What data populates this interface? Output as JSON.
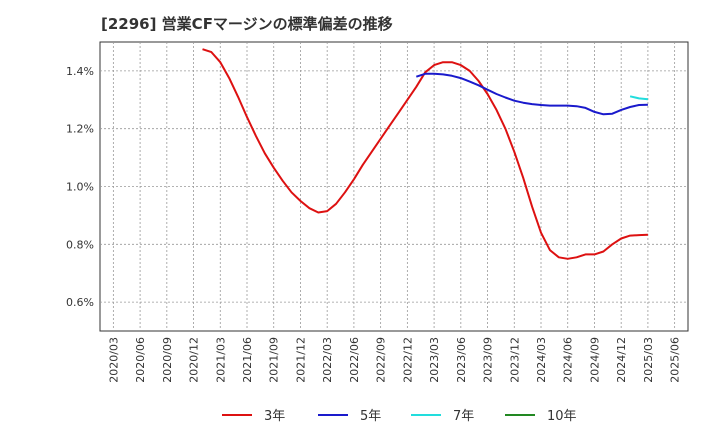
{
  "header": {
    "title": "[2296]  営業CFマージンの標準偏差の推移"
  },
  "chart_data": {
    "type": "line",
    "title": "[2296]  営業CFマージンの標準偏差の推移",
    "xlabel": "",
    "ylabel": "",
    "ylim": [
      0.5,
      1.5
    ],
    "yticks": [
      0.6,
      0.8,
      1.0,
      1.2,
      1.4
    ],
    "ytick_labels": [
      "0.6%",
      "0.8%",
      "1.0%",
      "1.2%",
      "1.4%"
    ],
    "x_ticks": [
      "2020/03",
      "2020/06",
      "2020/09",
      "2020/12",
      "2021/03",
      "2021/06",
      "2021/09",
      "2021/12",
      "2022/03",
      "2022/06",
      "2022/09",
      "2022/12",
      "2023/03",
      "2023/06",
      "2023/09",
      "2023/12",
      "2024/03",
      "2024/06",
      "2024/09",
      "2024/12",
      "2025/03",
      "2025/06"
    ],
    "grid": true,
    "legend_position": "bottom",
    "series": [
      {
        "name": "3年",
        "color": "#dd1111",
        "x": [
          "2021/01",
          "2021/02",
          "2021/03",
          "2021/04",
          "2021/05",
          "2021/06",
          "2021/07",
          "2021/08",
          "2021/09",
          "2021/10",
          "2021/11",
          "2021/12",
          "2022/01",
          "2022/02",
          "2022/03",
          "2022/04",
          "2022/05",
          "2022/06",
          "2022/07",
          "2022/08",
          "2022/09",
          "2022/10",
          "2022/11",
          "2022/12",
          "2023/01",
          "2023/02",
          "2023/03",
          "2023/04",
          "2023/05",
          "2023/06",
          "2023/07",
          "2023/08",
          "2023/09",
          "2023/10",
          "2023/11",
          "2023/12",
          "2024/01",
          "2024/02",
          "2024/03",
          "2024/04",
          "2024/05",
          "2024/06",
          "2024/07",
          "2024/08",
          "2024/09",
          "2024/10",
          "2024/11",
          "2024/12",
          "2025/01",
          "2025/02",
          "2025/03"
        ],
        "values": [
          1.475,
          1.465,
          1.43,
          1.375,
          1.31,
          1.24,
          1.175,
          1.115,
          1.065,
          1.02,
          0.98,
          0.95,
          0.925,
          0.91,
          0.915,
          0.94,
          0.98,
          1.025,
          1.075,
          1.12,
          1.165,
          1.21,
          1.255,
          1.3,
          1.345,
          1.395,
          1.42,
          1.43,
          1.43,
          1.42,
          1.4,
          1.365,
          1.32,
          1.265,
          1.2,
          1.12,
          1.03,
          0.93,
          0.84,
          0.78,
          0.755,
          0.75,
          0.755,
          0.765,
          0.765,
          0.775,
          0.8,
          0.82,
          0.83,
          0.832,
          0.833
        ]
      },
      {
        "name": "5年",
        "color": "#1a1acc",
        "x": [
          "2023/01",
          "2023/02",
          "2023/03",
          "2023/04",
          "2023/05",
          "2023/06",
          "2023/07",
          "2023/08",
          "2023/09",
          "2023/10",
          "2023/11",
          "2023/12",
          "2024/01",
          "2024/02",
          "2024/03",
          "2024/04",
          "2024/05",
          "2024/06",
          "2024/07",
          "2024/08",
          "2024/09",
          "2024/10",
          "2024/11",
          "2024/12",
          "2025/01",
          "2025/02",
          "2025/03"
        ],
        "values": [
          1.38,
          1.39,
          1.39,
          1.388,
          1.383,
          1.375,
          1.363,
          1.35,
          1.335,
          1.32,
          1.308,
          1.297,
          1.29,
          1.285,
          1.282,
          1.28,
          1.28,
          1.28,
          1.278,
          1.272,
          1.258,
          1.25,
          1.252,
          1.265,
          1.275,
          1.282,
          1.283
        ]
      },
      {
        "name": "7年",
        "color": "#22dddd",
        "x": [
          "2025/01",
          "2025/02",
          "2025/03"
        ],
        "values": [
          1.312,
          1.305,
          1.302
        ]
      },
      {
        "name": "10年",
        "color": "#228822",
        "x": [],
        "values": []
      }
    ]
  }
}
